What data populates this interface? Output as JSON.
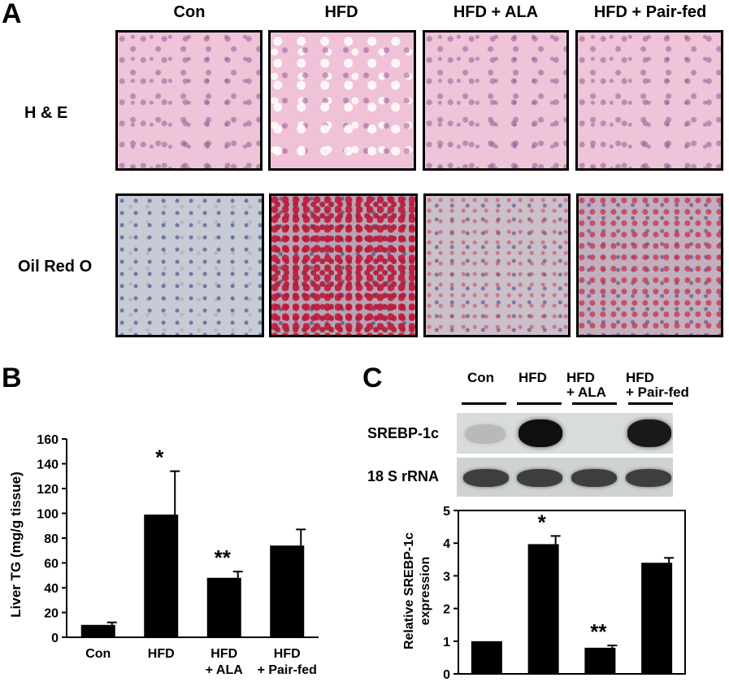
{
  "panel_letters": {
    "a": "A",
    "b": "B",
    "c": "C"
  },
  "panel_a": {
    "columns": [
      "Con",
      "HFD",
      "HFD + ALA",
      "HFD + Pair-fed"
    ],
    "rows": [
      "H & E",
      "Oil Red O"
    ]
  },
  "chart_data": [
    {
      "type": "bar",
      "panel": "B",
      "categories": [
        "Con",
        "HFD",
        "HFD\n+ ALA",
        "HFD\n+ Pair-fed"
      ],
      "category_lines": [
        [
          "Con"
        ],
        [
          "HFD"
        ],
        [
          "HFD",
          "+ ALA"
        ],
        [
          "HFD",
          "+ Pair-fed"
        ]
      ],
      "values": [
        10,
        99,
        48,
        74
      ],
      "errors": [
        2,
        35,
        5,
        13
      ],
      "annotations": [
        "",
        "*",
        "**",
        ""
      ],
      "ylabel": "Liver TG (mg/g tissue)",
      "xlabel": "",
      "ylim": [
        0,
        160
      ],
      "yticks": [
        0,
        20,
        40,
        60,
        80,
        100,
        120,
        140,
        160
      ],
      "bar_color": "#000000",
      "grid": false
    },
    {
      "type": "bar",
      "panel": "C",
      "categories": [
        "Con",
        "HFD",
        "HFD + ALA",
        "HFD + Pair-fed"
      ],
      "values": [
        1.0,
        3.97,
        0.8,
        3.4
      ],
      "errors": [
        0,
        0.25,
        0.07,
        0.15
      ],
      "annotations": [
        "",
        "*",
        "**",
        ""
      ],
      "ylabel_lines": [
        "Relative SREBP-1c",
        "expression"
      ],
      "ylim": [
        0,
        5
      ],
      "yticks": [
        0,
        1,
        2,
        3,
        4,
        5
      ],
      "bar_color": "#000000",
      "grid": false
    }
  ],
  "panel_c_blot": {
    "lanes": [
      [
        "Con"
      ],
      [
        "HFD"
      ],
      [
        "HFD",
        "+ ALA"
      ],
      [
        "HFD",
        "+ Pair-fed"
      ]
    ],
    "rows": [
      "SREBP-1c",
      "18 S rRNA"
    ],
    "srebp_band_intensity": [
      0.15,
      1.0,
      0.0,
      0.95
    ],
    "rrna_band_intensity": [
      0.9,
      0.9,
      0.9,
      0.9
    ]
  }
}
